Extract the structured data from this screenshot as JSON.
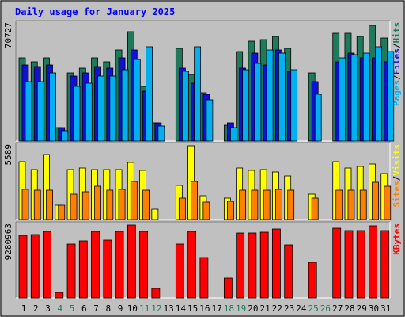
{
  "chart_data": {
    "type": "bar",
    "title": "Daily usage for January 2025",
    "days": [
      "1",
      "2",
      "3",
      "4",
      "5",
      "6",
      "7",
      "8",
      "9",
      "10",
      "11",
      "12",
      "13",
      "14",
      "15",
      "16",
      "17",
      "18",
      "19",
      "20",
      "21",
      "22",
      "23",
      "24",
      "25",
      "26",
      "27",
      "28",
      "29",
      "30",
      "31"
    ],
    "weekend_days": [
      "4",
      "5",
      "11",
      "12",
      "18",
      "19",
      "25",
      "26"
    ],
    "panels": [
      {
        "max_label": "70727",
        "max": 70727,
        "legend": [
          "Pages",
          "/",
          "Files",
          "/",
          "Hits"
        ],
        "series": [
          {
            "name": "Hits",
            "color": "#1e7a5a",
            "values": [
              50000,
              48000,
              50000,
              8000,
              41000,
              44000,
              50000,
              48000,
              55000,
              66000,
              33000,
              11000,
              0,
              56000,
              40000,
              29000,
              0,
              9500,
              54000,
              60000,
              61000,
              63000,
              56000,
              0,
              41000,
              0,
              65000,
              65000,
              63000,
              70000,
              62000
            ]
          },
          {
            "name": "Files",
            "color": "#1010d8",
            "values": [
              46000,
              45000,
              46000,
              8000,
              39000,
              41000,
              45000,
              44000,
              50000,
              55000,
              30000,
              11000,
              0,
              44000,
              35000,
              28000,
              0,
              11000,
              44000,
              53000,
              46000,
              55000,
              42000,
              0,
              36000,
              0,
              48000,
              53000,
              50000,
              50000,
              48000
            ]
          },
          {
            "name": "Pages",
            "color": "#00b0f0",
            "values": [
              36000,
              36000,
              41000,
              6000,
              33000,
              35000,
              39000,
              39000,
              43000,
              49000,
              57000,
              9000,
              0,
              42000,
              57000,
              25000,
              0,
              8000,
              43000,
              47000,
              55000,
              53000,
              43000,
              0,
              28000,
              0,
              50000,
              52000,
              53000,
              57000,
              54000
            ]
          }
        ]
      },
      {
        "max_label": "5589",
        "max": 5589,
        "legend": [
          "Sites",
          "/",
          "Visits"
        ],
        "series": [
          {
            "name": "Visits",
            "color": "#ffff00",
            "values": [
              4400,
              3800,
              4900,
              1100,
              3800,
              3900,
              3800,
              3800,
              3800,
              4300,
              3700,
              800,
              0,
              2600,
              5600,
              1800,
              0,
              1600,
              3900,
              3700,
              3800,
              3600,
              3300,
              0,
              1900,
              0,
              4400,
              3900,
              4000,
              4200,
              3500
            ]
          },
          {
            "name": "Sites",
            "color": "#ff8000",
            "values": [
              2300,
              2200,
              2200,
              1100,
              1900,
              2100,
              2500,
              2200,
              2300,
              2900,
              2200,
              0,
              0,
              1600,
              2900,
              1300,
              0,
              1400,
              2200,
              2200,
              2200,
              2300,
              2200,
              0,
              1600,
              0,
              2200,
              2200,
              2200,
              2800,
              2500
            ]
          }
        ]
      },
      {
        "max_label": "9280963",
        "max": 9280963,
        "legend": [
          "KBytes"
        ],
        "series": [
          {
            "name": "KBytes",
            "color": "#ff0000",
            "values": [
              8000000,
              8100000,
              8500000,
              750000,
              6900000,
              7300000,
              8500000,
              7400000,
              8500000,
              9280963,
              8500000,
              1200000,
              0,
              6900000,
              8500000,
              5100000,
              0,
              2500000,
              8300000,
              8300000,
              8400000,
              8800000,
              6800000,
              0,
              4500000,
              0,
              8900000,
              8600000,
              8600000,
              9200000,
              8600000
            ]
          }
        ]
      }
    ]
  }
}
